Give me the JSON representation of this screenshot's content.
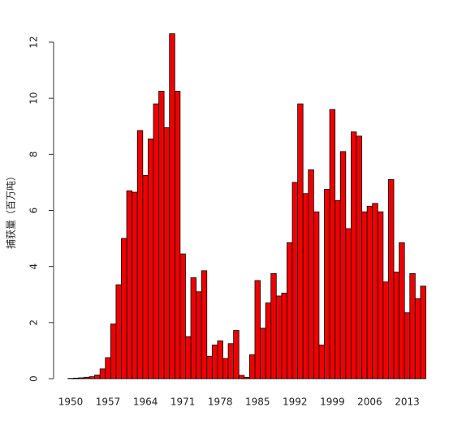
{
  "chart_data": {
    "type": "bar",
    "y_label": "捕获量（百万吨）",
    "x": [
      1950,
      1951,
      1952,
      1953,
      1954,
      1955,
      1956,
      1957,
      1958,
      1959,
      1960,
      1961,
      1962,
      1963,
      1964,
      1965,
      1966,
      1967,
      1968,
      1969,
      1970,
      1971,
      1972,
      1973,
      1974,
      1975,
      1976,
      1977,
      1978,
      1979,
      1980,
      1981,
      1982,
      1983,
      1984,
      1985,
      1986,
      1987,
      1988,
      1989,
      1990,
      1991,
      1992,
      1993,
      1994,
      1995,
      1996,
      1997,
      1998,
      1999,
      2000,
      2001,
      2002,
      2003,
      2004,
      2005,
      2006,
      2007,
      2008,
      2009,
      2010,
      2011,
      2012,
      2013,
      2014,
      2015,
      2016
    ],
    "values": [
      0.01,
      0.02,
      0.03,
      0.05,
      0.07,
      0.13,
      0.35,
      0.75,
      1.95,
      3.35,
      5.0,
      6.7,
      6.65,
      8.85,
      7.25,
      8.55,
      9.8,
      10.25,
      8.95,
      12.3,
      10.25,
      4.45,
      1.5,
      3.6,
      3.1,
      3.85,
      0.8,
      1.2,
      1.35,
      0.72,
      1.25,
      1.72,
      0.12,
      0.05,
      0.85,
      3.5,
      1.8,
      2.7,
      3.75,
      2.95,
      3.05,
      4.85,
      7.0,
      9.8,
      6.6,
      7.45,
      5.95,
      1.2,
      6.75,
      9.6,
      6.35,
      8.1,
      5.35,
      8.8,
      8.65,
      5.95,
      6.15,
      6.25,
      5.95,
      3.45,
      7.1,
      3.8,
      4.85,
      2.35,
      3.75,
      2.85,
      3.3
    ],
    "color": "#ee0000",
    "xlim": [
      1949.5,
      2016.5
    ],
    "xticks": [
      1950,
      1957,
      1964,
      1971,
      1978,
      1985,
      1992,
      1999,
      2006,
      2013
    ],
    "ylim": [
      0,
      12
    ],
    "yticks": [
      0,
      2,
      4,
      6,
      8,
      10,
      12
    ]
  }
}
